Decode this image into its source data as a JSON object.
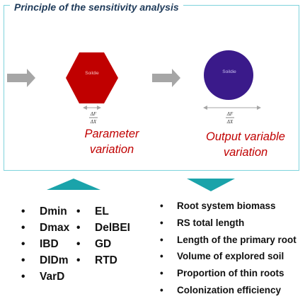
{
  "title": "Principle of the sensitivity analysis",
  "input_shape_label": "Soildie",
  "output_shape_label": "Soildie",
  "derivative": {
    "numerator": "ΔF",
    "denominator": "ΔX"
  },
  "parameter_caption": [
    "Parameter",
    "variation"
  ],
  "output_caption": [
    "Output variable",
    "variation"
  ],
  "parameters_col1": [
    "Dmin",
    "Dmax",
    "IBD",
    "DIDm",
    "VarD"
  ],
  "parameters_col2": [
    "EL",
    "DelBEI",
    "GD",
    "RTD"
  ],
  "outputs": [
    "Root system biomass",
    "RS total length",
    "Length of the primary root",
    "Volume of explored soil",
    "Proportion of thin roots",
    "Colonization efficiency"
  ],
  "colors": {
    "frame": "#7fd3dc",
    "arrow": "#a6a6a6",
    "hexagon": "#c00000",
    "circle": "#3a1a8a",
    "caption": "#c00000",
    "triangle": "#1aa3aa"
  }
}
